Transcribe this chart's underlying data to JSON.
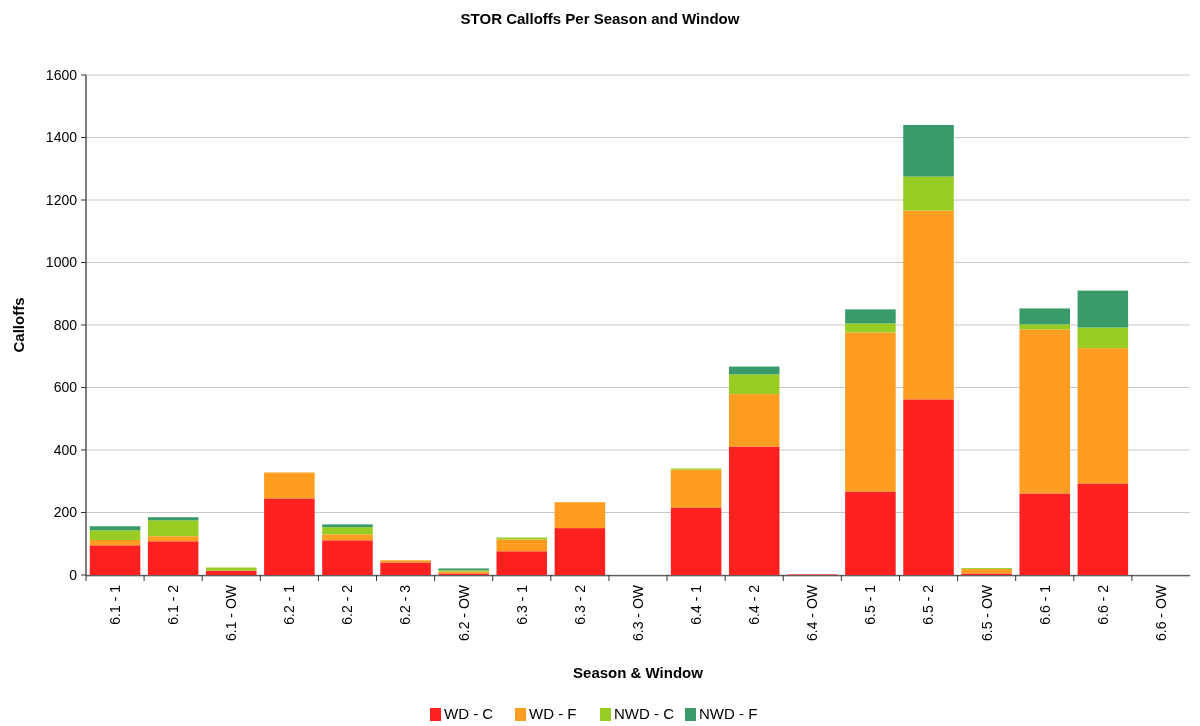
{
  "chart_data": {
    "type": "bar",
    "title": "STOR Calloffs Per Season and Window",
    "xlabel": "Season & Window",
    "ylabel": "Calloffs",
    "categories": [
      "6.1 - 1",
      "6.1 - 2",
      "6.1 - OW",
      "6.2 - 1",
      "6.2 - 2",
      "6.2 - 3",
      "6.2 - OW",
      "6.3 - 1",
      "6.3 - 2",
      "6.3 - OW",
      "6.4 - 1",
      "6.4 - 2",
      "6.4 - OW",
      "6.5 - 1",
      "6.5 - 2",
      "6.5 - OW",
      "6.6 - 1",
      "6.6 - 2",
      "6.6 - OW"
    ],
    "stacked": true,
    "series": [
      {
        "name": "WD - C",
        "color": "#ff2020",
        "values": [
          95,
          108,
          14,
          245,
          111,
          40,
          5,
          76,
          150,
          0,
          216,
          411,
          2,
          267,
          562,
          5,
          261,
          293,
          0
        ]
      },
      {
        "name": "WD - F",
        "color": "#ff9d20",
        "values": [
          17,
          16,
          0,
          83,
          19,
          7,
          6,
          38,
          83,
          0,
          121,
          168,
          0,
          509,
          604,
          14,
          525,
          433,
          0
        ]
      },
      {
        "name": "NWD - C",
        "color": "#99cc22",
        "values": [
          31,
          51,
          10,
          0,
          23,
          0,
          4,
          6,
          0,
          0,
          4,
          63,
          0,
          29,
          109,
          3,
          16,
          66,
          0
        ]
      },
      {
        "name": "NWD - F",
        "color": "#3a9a6a",
        "values": [
          13,
          10,
          0,
          0,
          9,
          0,
          6,
          0,
          0,
          0,
          0,
          25,
          0,
          45,
          165,
          0,
          51,
          118,
          0
        ]
      }
    ],
    "ylim": [
      0,
      1600
    ],
    "yticks": [
      0,
      200,
      400,
      600,
      800,
      1000,
      1200,
      1400,
      1600
    ],
    "grid": "y",
    "legend": "bottom"
  }
}
